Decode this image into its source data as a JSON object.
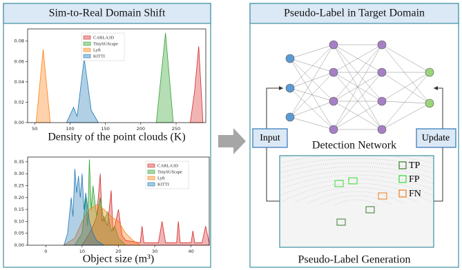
{
  "left_panel": {
    "title": "Sim-to-Real Domain Shift"
  },
  "chart_data": [
    {
      "type": "area",
      "x_label": "Density of the point clouds (K)",
      "legend": "upper center",
      "xlim": [
        40,
        292
      ],
      "ylim": [
        0,
        0.092
      ],
      "xticks": [
        50,
        100,
        150,
        200,
        250
      ],
      "yticks": [
        {
          "value": 0,
          "label": "0.00"
        },
        0.02,
        0.04,
        0.06,
        0.08
      ],
      "series": [
        {
          "name": "CARLA3D",
          "color": "#d62728",
          "x": [
            270,
            276,
            282,
            288
          ],
          "values": [
            0,
            0.03,
            0.075,
            0
          ]
        },
        {
          "name": "TinySUScape",
          "color": "#2ca02c",
          "x": [
            222,
            235,
            246
          ],
          "values": [
            0,
            0.088,
            0
          ]
        },
        {
          "name": "Lyft",
          "color": "#ff7f0e",
          "x": [
            52,
            62,
            72
          ],
          "values": [
            0,
            0.072,
            0
          ]
        },
        {
          "name": "KITTI",
          "color": "#1f77b4",
          "x": [
            95,
            105,
            110,
            120,
            130,
            140
          ],
          "values": [
            0,
            0.015,
            0.006,
            0.063,
            0.012,
            0
          ]
        }
      ]
    },
    {
      "type": "area",
      "x_label": "Object size (m³)",
      "legend": "upper right",
      "xlim": [
        -5,
        45
      ],
      "ylim": [
        0,
        0.37
      ],
      "xticks": [
        0,
        10,
        20,
        30,
        40
      ],
      "yticks": [
        {
          "value": 0,
          "label": "0.00"
        },
        0.05,
        {
          "value": 0.1,
          "label": "0.10"
        },
        0.15,
        {
          "value": 0.2,
          "label": "0.20"
        },
        0.25,
        {
          "value": 0.3,
          "label": "0.30"
        },
        0.35
      ],
      "series": [
        {
          "name": "CARLA3D",
          "color": "#d62728",
          "x": [
            10,
            12,
            13,
            14,
            15,
            15.5,
            16,
            17,
            18,
            18.5,
            19,
            20,
            21,
            22,
            26,
            26.5,
            27,
            31,
            32,
            33,
            36,
            36.5,
            37,
            40,
            40.5,
            41,
            43,
            44,
            45
          ],
          "values": [
            0,
            0.05,
            0.08,
            0.12,
            0.3,
            0.1,
            0.12,
            0.08,
            0.23,
            0.06,
            0.08,
            0.15,
            0.04,
            0.02,
            0.01,
            0.08,
            0.01,
            0.01,
            0.1,
            0.01,
            0.01,
            0.1,
            0.01,
            0.01,
            0.06,
            0.01,
            0.01,
            0.08,
            0.01
          ]
        },
        {
          "name": "TinySUScape",
          "color": "#2ca02c",
          "x": [
            8,
            10,
            11,
            11.5,
            12,
            12.5,
            13,
            14,
            15,
            16,
            17,
            18,
            19,
            20,
            22
          ],
          "values": [
            0,
            0.05,
            0.2,
            0.08,
            0.36,
            0.15,
            0.25,
            0.12,
            0.2,
            0.1,
            0.14,
            0.06,
            0.08,
            0.03,
            0
          ]
        },
        {
          "name": "Lyft",
          "color": "#ff7f0e",
          "x": [
            5,
            8,
            10,
            12,
            14,
            16,
            18,
            20,
            22,
            24,
            26
          ],
          "values": [
            0,
            0.03,
            0.1,
            0.15,
            0.17,
            0.15,
            0.12,
            0.1,
            0.05,
            0.02,
            0
          ]
        },
        {
          "name": "KITTI",
          "color": "#1f77b4",
          "x": [
            5,
            6,
            7,
            7.5,
            8,
            8.5,
            9,
            9.5,
            10,
            10.5,
            11,
            12,
            13,
            14,
            16
          ],
          "values": [
            0,
            0.05,
            0.2,
            0.12,
            0.32,
            0.22,
            0.29,
            0.2,
            0.3,
            0.15,
            0.22,
            0.1,
            0.05,
            0.02,
            0
          ]
        }
      ]
    }
  ],
  "right_panel": {
    "title": "Pseudo-Label in Target Domain",
    "network_label": "Detection Network",
    "input_label": "Input",
    "update_label": "Update",
    "legend": [
      "TP",
      "FP",
      "FN"
    ],
    "generation_label": "Pseudo-Label Generation"
  }
}
